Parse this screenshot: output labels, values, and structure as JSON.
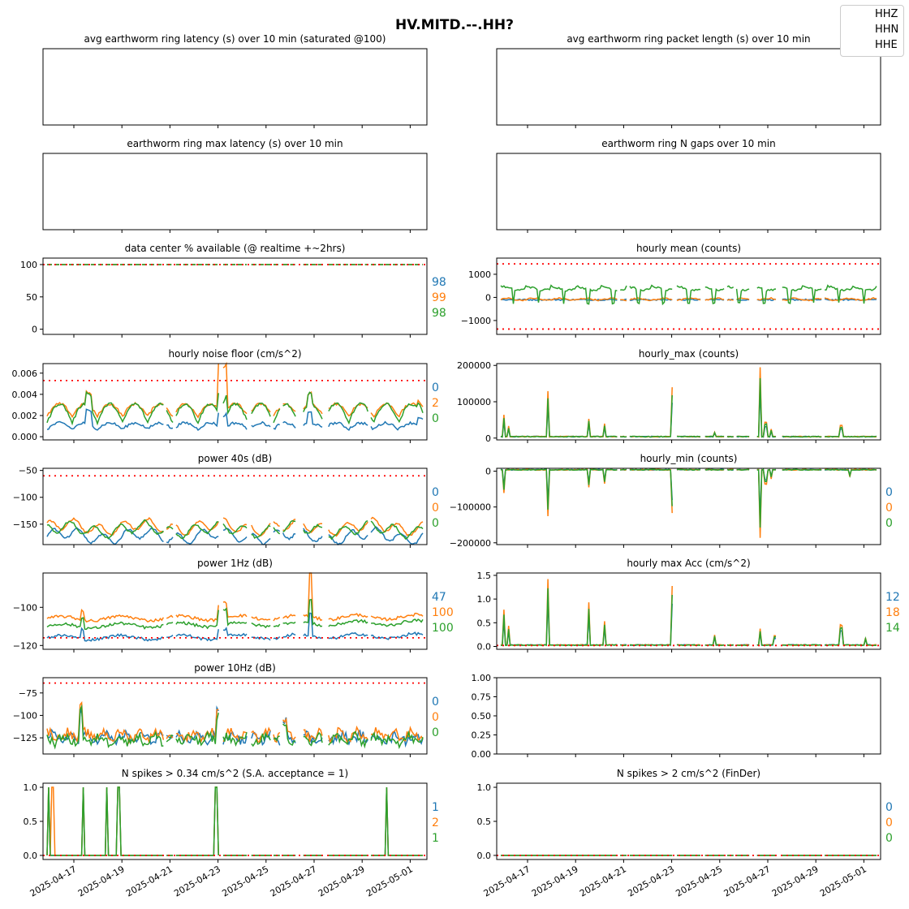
{
  "figure": {
    "title": "HV.MITD.--.HH?",
    "legend": [
      "HHZ",
      "HHN",
      "HHE"
    ],
    "series_colors": {
      "HHZ": "#1f77b4",
      "HHN": "#ff7f0e",
      "HHE": "#2ca02c"
    },
    "threshold_color": "#ff0000",
    "x_ticks": [
      "2025-04-17",
      "2025-04-19",
      "2025-04-21",
      "2025-04-23",
      "2025-04-25",
      "2025-04-27",
      "2025-04-29",
      "2025-05-01"
    ]
  },
  "chart_data": [
    {
      "id": "p1",
      "title": "avg earthworm ring latency (s)   over 10 min (saturated @100)",
      "type": "line",
      "series": [],
      "side_values": [],
      "ylim": null
    },
    {
      "id": "p2",
      "title": "avg earthworm ring packet length (s)   over 10 min",
      "type": "line",
      "series": [],
      "side_values": [],
      "ylim": null
    },
    {
      "id": "p3",
      "title": "earthworm ring max latency (s)   over 10 min",
      "type": "line",
      "series": [],
      "side_values": [],
      "ylim": null
    },
    {
      "id": "p4",
      "title": "earthworm ring N gaps   over 10 min",
      "type": "line",
      "series": [],
      "side_values": [],
      "ylim": null
    },
    {
      "id": "p5",
      "title": "data center % available (@ realtime +~2hrs)",
      "type": "line",
      "ylim": [
        -8,
        110
      ],
      "yticks": [
        0,
        50,
        100
      ],
      "ytick_labels": [
        "0",
        "50",
        "100"
      ],
      "thresholds": [
        100
      ],
      "series": [
        {
          "name": "HHZ",
          "baseline": 100
        },
        {
          "name": "HHN",
          "baseline": 100
        },
        {
          "name": "HHE",
          "baseline": 100
        }
      ],
      "side_values": [
        "98",
        "99",
        "98"
      ]
    },
    {
      "id": "p6",
      "title": "hourly mean (counts)",
      "type": "line",
      "ylim": [
        -1600,
        1700
      ],
      "yticks": [
        -1000,
        0,
        1000
      ],
      "ytick_labels": [
        "−1000",
        "0",
        "1000"
      ],
      "thresholds": [
        1450,
        -1370
      ],
      "series": [
        {
          "name": "HHZ",
          "baseline": -100
        },
        {
          "name": "HHN",
          "baseline": -80
        },
        {
          "name": "HHE",
          "baseline": 300
        }
      ],
      "side_values": []
    },
    {
      "id": "p7",
      "title": "hourly noise floor (cm/s^2)",
      "type": "line",
      "ylim": [
        -0.0003,
        0.0069
      ],
      "yticks": [
        0,
        0.002,
        0.004,
        0.006
      ],
      "ytick_labels": [
        "0.000",
        "0.002",
        "0.004",
        "0.006"
      ],
      "thresholds": [
        0.0053
      ],
      "series": [
        {
          "name": "HHZ",
          "baseline": 0.0007
        },
        {
          "name": "HHN",
          "baseline": 0.0019
        },
        {
          "name": "HHE",
          "baseline": 0.0013
        }
      ],
      "side_values": [
        "0",
        "2",
        "0"
      ]
    },
    {
      "id": "p8",
      "title": "hourly_max (counts)",
      "type": "line",
      "ylim": [
        -5000,
        205000
      ],
      "yticks": [
        0,
        100000,
        200000
      ],
      "ytick_labels": [
        "0",
        "100000",
        "200000"
      ],
      "thresholds": [],
      "series": [
        {
          "name": "HHZ",
          "baseline": 4000
        },
        {
          "name": "HHN",
          "baseline": 4000
        },
        {
          "name": "HHE",
          "baseline": 4000
        }
      ],
      "side_values": []
    },
    {
      "id": "p9",
      "title": "power 40s (dB)",
      "type": "line",
      "ylim": [
        -188,
        -46
      ],
      "yticks": [
        -150,
        -100,
        -50
      ],
      "ytick_labels": [
        "−150",
        "−100",
        "−50"
      ],
      "thresholds": [
        -60
      ],
      "series": [
        {
          "name": "HHZ",
          "baseline": -172
        },
        {
          "name": "HHN",
          "baseline": -155
        },
        {
          "name": "HHE",
          "baseline": -160
        }
      ],
      "side_values": [
        "0",
        "0",
        "0"
      ]
    },
    {
      "id": "p10",
      "title": "hourly_min (counts)",
      "type": "line",
      "ylim": [
        -205000,
        8000
      ],
      "yticks": [
        -200000,
        -100000,
        0
      ],
      "ytick_labels": [
        "−200000",
        "−100000",
        "0"
      ],
      "thresholds": [],
      "series": [
        {
          "name": "HHZ",
          "baseline": -4000
        },
        {
          "name": "HHN",
          "baseline": -4000
        },
        {
          "name": "HHE",
          "baseline": -4000
        }
      ],
      "side_values": [
        "0",
        "0",
        "0"
      ]
    },
    {
      "id": "p11",
      "title": "power 1Hz (dB)",
      "type": "line",
      "ylim": [
        -122,
        -82
      ],
      "yticks": [
        -120,
        -100
      ],
      "ytick_labels": [
        "−120",
        "−100"
      ],
      "thresholds": [
        -116
      ],
      "series": [
        {
          "name": "HHZ",
          "baseline": -116
        },
        {
          "name": "HHN",
          "baseline": -106
        },
        {
          "name": "HHE",
          "baseline": -110
        }
      ],
      "side_values": [
        "47",
        "100",
        "100"
      ]
    },
    {
      "id": "p12",
      "title": "hourly max Acc (cm/s^2)",
      "type": "line",
      "ylim": [
        -0.06,
        1.55
      ],
      "yticks": [
        0,
        0.5,
        1.0,
        1.5
      ],
      "ytick_labels": [
        "0.0",
        "0.5",
        "1.0",
        "1.5"
      ],
      "thresholds": [
        0.02
      ],
      "series": [
        {
          "name": "HHZ",
          "baseline": 0.03
        },
        {
          "name": "HHN",
          "baseline": 0.03
        },
        {
          "name": "HHE",
          "baseline": 0.03
        }
      ],
      "side_values": [
        "12",
        "18",
        "14"
      ]
    },
    {
      "id": "p13",
      "title": "power 10Hz (dB)",
      "type": "line",
      "ylim": [
        -143,
        -58
      ],
      "yticks": [
        -125,
        -100,
        -75
      ],
      "ytick_labels": [
        "−125",
        "−100",
        "−75"
      ],
      "thresholds": [
        -64
      ],
      "series": [
        {
          "name": "HHZ",
          "baseline": -125
        },
        {
          "name": "HHN",
          "baseline": -122
        },
        {
          "name": "HHE",
          "baseline": -127
        }
      ],
      "side_values": [
        "0",
        "0",
        "0"
      ]
    },
    {
      "id": "p14",
      "title": "",
      "type": "line",
      "ylim": [
        0,
        1
      ],
      "yticks": [
        0,
        0.25,
        0.5,
        0.75,
        1.0
      ],
      "ytick_labels": [
        "0.00",
        "0.25",
        "0.50",
        "0.75",
        "1.00"
      ],
      "thresholds": [],
      "series": [],
      "side_values": []
    },
    {
      "id": "p15",
      "title": "N spikes > 0.34 cm/s^2 (S.A. acceptance = 1)",
      "type": "line",
      "ylim": [
        -0.06,
        1.06
      ],
      "yticks": [
        0,
        0.5,
        1.0
      ],
      "ytick_labels": [
        "0.0",
        "0.5",
        "1.0"
      ],
      "thresholds": [
        0
      ],
      "series": [
        {
          "name": "HHZ",
          "baseline": 0
        },
        {
          "name": "HHN",
          "baseline": 0
        },
        {
          "name": "HHE",
          "baseline": 0
        }
      ],
      "side_values": [
        "1",
        "2",
        "1"
      ]
    },
    {
      "id": "p16",
      "title": "N spikes > 2 cm/s^2 (FinDer)",
      "type": "line",
      "ylim": [
        -0.06,
        1.06
      ],
      "yticks": [
        0,
        0.5,
        1.0
      ],
      "ytick_labels": [
        "0.0",
        "0.5",
        "1.0"
      ],
      "thresholds": [
        0
      ],
      "series": [
        {
          "name": "HHZ",
          "baseline": 0
        },
        {
          "name": "HHN",
          "baseline": 0
        },
        {
          "name": "HHE",
          "baseline": 0
        }
      ],
      "side_values": [
        "0",
        "0",
        "0"
      ]
    }
  ]
}
